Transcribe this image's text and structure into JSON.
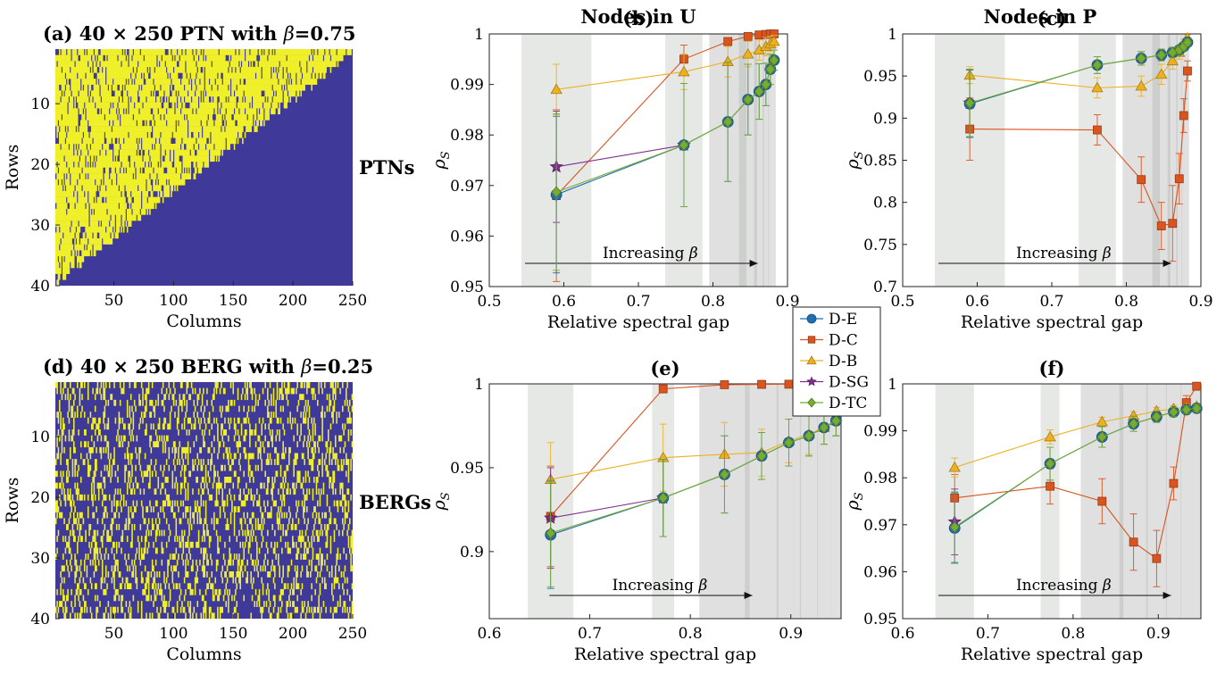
{
  "headers": {
    "col_b": "Nodes in U",
    "col_c": "Nodes in P"
  },
  "row_labels": {
    "top": "PTNs",
    "bottom": "BERGs"
  },
  "colors": {
    "matrix_fill": "#3f3a9a",
    "matrix_entry": "#f0f02a",
    "band": "#e6e8e6",
    "D-E": "#1f6fb2",
    "D-C": "#d9541f",
    "D-B": "#edb120",
    "D-SG": "#7e2f8e",
    "D-TC": "#77ac30"
  },
  "legend": {
    "entries": [
      {
        "label": "D-E",
        "marker": "circle",
        "color": "#1f6fb2"
      },
      {
        "label": "D-C",
        "marker": "square",
        "color": "#d9541f"
      },
      {
        "label": "D-B",
        "marker": "triangle",
        "color": "#edb120"
      },
      {
        "label": "D-SG",
        "marker": "star",
        "color": "#7e2f8e"
      },
      {
        "label": "D-TC",
        "marker": "diamond",
        "color": "#77ac30"
      }
    ]
  },
  "chart_data": [
    {
      "id": "a",
      "type": "heatmap",
      "title": "(a) 40 × 250 PTN with β=0.75",
      "xlabel": "Columns",
      "ylabel": "Rows",
      "xticks": [
        50,
        100,
        150,
        200,
        250
      ],
      "yticks": [
        10,
        20,
        30,
        40
      ],
      "xlim": [
        1,
        250
      ],
      "ylim": [
        1,
        40
      ],
      "rows": 40,
      "cols": 250,
      "pattern": "nested",
      "beta": 0.75
    },
    {
      "id": "d",
      "type": "heatmap",
      "title": "(d) 40 × 250 BERG with β=0.25",
      "xlabel": "Columns",
      "ylabel": "Rows",
      "xticks": [
        50,
        100,
        150,
        200,
        250
      ],
      "yticks": [
        10,
        20,
        30,
        40
      ],
      "xlim": [
        1,
        250
      ],
      "ylim": [
        1,
        40
      ],
      "rows": 40,
      "cols": 250,
      "pattern": "random",
      "beta": 0.25
    },
    {
      "id": "b",
      "type": "line",
      "title": "(b)",
      "xlabel": "Relative spectral gap",
      "ylabel": "ρS",
      "xlim": [
        0.5,
        0.9
      ],
      "ylim": [
        0.95,
        1.0
      ],
      "xticks": [
        0.5,
        0.6,
        0.7,
        0.8,
        0.9
      ],
      "yticks": [
        0.95,
        0.96,
        0.97,
        0.98,
        0.99,
        1.0
      ],
      "annotation": "Increasing β",
      "bands": [
        0.59,
        0.761,
        0.82,
        0.847,
        0.862,
        0.871,
        0.877,
        0.882
      ],
      "series": [
        {
          "name": "D-E",
          "x": [
            0.59,
            0.761,
            0.82,
            0.847,
            0.862,
            0.871,
            0.877,
            0.882
          ],
          "y": [
            0.9682,
            0.978,
            0.9826,
            0.987,
            0.9886,
            0.99,
            0.993,
            0.9948
          ],
          "err": [
            0.0155,
            0.0122,
            0.0118,
            0.007,
            0.0055,
            0.0042,
            0.003,
            0.002
          ]
        },
        {
          "name": "D-C",
          "x": [
            0.59,
            0.761,
            0.82,
            0.847,
            0.862,
            0.871,
            0.877,
            0.882
          ],
          "y": [
            0.968,
            0.995,
            0.9985,
            0.9995,
            0.9998,
            0.9999,
            1.0,
            1.0
          ],
          "err": [
            0.017,
            0.0028,
            0.0007,
            0.0003,
            0.0002,
            0.0001,
            0.0001,
            0.0001
          ]
        },
        {
          "name": "D-B",
          "x": [
            0.59,
            0.761,
            0.82,
            0.847,
            0.862,
            0.871,
            0.877,
            0.882
          ],
          "y": [
            0.989,
            0.9925,
            0.9945,
            0.996,
            0.9968,
            0.9975,
            0.998,
            0.9985
          ],
          "err": [
            0.005,
            0.0035,
            0.003,
            0.0025,
            0.002,
            0.0018,
            0.0015,
            0.0012
          ]
        },
        {
          "name": "D-SG",
          "x": [
            0.59,
            0.761
          ],
          "y": [
            0.9737,
            0.978
          ],
          "err": [
            0.011,
            0.0
          ]
        },
        {
          "name": "D-TC",
          "x": [
            0.59,
            0.761,
            0.82,
            0.847,
            0.862,
            0.871,
            0.877,
            0.882
          ],
          "y": [
            0.9687,
            0.978,
            0.9826,
            0.987,
            0.9886,
            0.99,
            0.993,
            0.9948
          ],
          "err": [
            0.0155,
            0.0122,
            0.0118,
            0.007,
            0.0055,
            0.0042,
            0.003,
            0.002
          ]
        }
      ]
    },
    {
      "id": "c",
      "type": "line",
      "title": "(c)",
      "xlabel": "Relative spectral gap",
      "ylabel": "ρS",
      "xlim": [
        0.5,
        0.9
      ],
      "ylim": [
        0.7,
        1.0
      ],
      "xticks": [
        0.5,
        0.6,
        0.7,
        0.8,
        0.9
      ],
      "yticks": [
        0.7,
        0.75,
        0.8,
        0.85,
        0.9,
        0.95,
        1.0
      ],
      "annotation": "Increasing β",
      "bands": [
        0.59,
        0.761,
        0.82,
        0.847,
        0.862,
        0.871,
        0.877,
        0.882
      ],
      "series": [
        {
          "name": "D-E",
          "x": [
            0.59,
            0.761,
            0.82,
            0.847,
            0.862,
            0.871,
            0.877,
            0.882
          ],
          "y": [
            0.917,
            0.963,
            0.971,
            0.975,
            0.978,
            0.981,
            0.985,
            0.99
          ],
          "err": [
            0.04,
            0.01,
            0.008,
            0.007,
            0.006,
            0.005,
            0.005,
            0.004
          ]
        },
        {
          "name": "D-C",
          "x": [
            0.59,
            0.761,
            0.82,
            0.847,
            0.862,
            0.871,
            0.877,
            0.882
          ],
          "y": [
            0.887,
            0.886,
            0.827,
            0.772,
            0.775,
            0.828,
            0.903,
            0.956
          ],
          "err": [
            0.037,
            0.018,
            0.027,
            0.028,
            0.045,
            0.03,
            0.02,
            0.012
          ]
        },
        {
          "name": "D-B",
          "x": [
            0.59,
            0.761,
            0.82,
            0.847,
            0.862,
            0.871,
            0.877,
            0.882
          ],
          "y": [
            0.951,
            0.936,
            0.938,
            0.952,
            0.968,
            0.978,
            0.988,
            0.995
          ],
          "err": [
            0.01,
            0.012,
            0.012,
            0.012,
            0.01,
            0.008,
            0.006,
            0.004
          ]
        },
        {
          "name": "D-SG",
          "x": [
            0.59
          ],
          "y": [
            0.918
          ],
          "err": [
            0.04
          ]
        },
        {
          "name": "D-TC",
          "x": [
            0.59,
            0.761,
            0.82,
            0.847,
            0.862,
            0.871,
            0.877,
            0.882
          ],
          "y": [
            0.918,
            0.963,
            0.971,
            0.975,
            0.978,
            0.981,
            0.985,
            0.99
          ],
          "err": [
            0.04,
            0.01,
            0.008,
            0.007,
            0.006,
            0.005,
            0.005,
            0.004
          ]
        }
      ]
    },
    {
      "id": "e",
      "type": "line",
      "title": "(e)",
      "xlabel": "Relative spectral gap",
      "ylabel": "ρS",
      "xlim": [
        0.6,
        0.95
      ],
      "ylim": [
        0.86,
        1.0
      ],
      "xticks": [
        0.6,
        0.7,
        0.8,
        0.9
      ],
      "yticks": [
        0.9,
        0.95,
        1.0
      ],
      "annotation": "Increasing β",
      "bands": [
        0.661,
        0.773,
        0.834,
        0.871,
        0.898,
        0.918,
        0.933,
        0.945
      ],
      "series": [
        {
          "name": "D-E",
          "x": [
            0.661,
            0.773,
            0.834,
            0.871,
            0.898,
            0.918,
            0.933,
            0.945
          ],
          "y": [
            0.91,
            0.932,
            0.946,
            0.957,
            0.965,
            0.969,
            0.974,
            0.978
          ],
          "err": [
            0.032,
            0.023,
            0.023,
            0.014,
            0.014,
            0.012,
            0.01,
            0.009
          ]
        },
        {
          "name": "D-C",
          "x": [
            0.661,
            0.773,
            0.834,
            0.871,
            0.898,
            0.918,
            0.933,
            0.945
          ],
          "y": [
            0.921,
            0.997,
            0.9995,
            0.9997,
            0.9998,
            0.9999,
            0.9999,
            1.0
          ],
          "err": [
            0.03,
            0.002,
            0.0005,
            0.0003,
            0.0002,
            0.0001,
            0.0001,
            0.0001
          ]
        },
        {
          "name": "D-B",
          "x": [
            0.661,
            0.773,
            0.834,
            0.871,
            0.898,
            0.918,
            0.933,
            0.945
          ],
          "y": [
            0.943,
            0.956,
            0.958,
            0.959,
            0.966,
            0.97,
            0.974,
            0.978
          ],
          "err": [
            0.022,
            0.02,
            0.019,
            0.014,
            0.013,
            0.012,
            0.01,
            0.009
          ]
        },
        {
          "name": "D-SG",
          "x": [
            0.661,
            0.773
          ],
          "y": [
            0.92,
            0.932
          ],
          "err": [
            0.03,
            0.023
          ]
        },
        {
          "name": "D-TC",
          "x": [
            0.661,
            0.773,
            0.834,
            0.871,
            0.898,
            0.918,
            0.933,
            0.945
          ],
          "y": [
            0.911,
            0.932,
            0.946,
            0.957,
            0.965,
            0.969,
            0.974,
            0.978
          ],
          "err": [
            0.032,
            0.023,
            0.023,
            0.014,
            0.014,
            0.012,
            0.01,
            0.009
          ]
        }
      ]
    },
    {
      "id": "f",
      "type": "line",
      "title": "(f)",
      "xlabel": "Relative spectral gap",
      "ylabel": "ρS",
      "xlim": [
        0.6,
        0.95
      ],
      "ylim": [
        0.95,
        1.0
      ],
      "xticks": [
        0.6,
        0.7,
        0.8,
        0.9
      ],
      "yticks": [
        0.95,
        0.96,
        0.97,
        0.98,
        0.99,
        1.0
      ],
      "annotation": "Increasing β",
      "bands": [
        0.661,
        0.773,
        0.834,
        0.871,
        0.898,
        0.918,
        0.933,
        0.945
      ],
      "series": [
        {
          "name": "D-E",
          "x": [
            0.661,
            0.773,
            0.834,
            0.871,
            0.898,
            0.918,
            0.933,
            0.945
          ],
          "y": [
            0.9693,
            0.983,
            0.9887,
            0.9915,
            0.993,
            0.994,
            0.9945,
            0.9948
          ],
          "err": [
            0.0075,
            0.0035,
            0.0022,
            0.0016,
            0.0012,
            0.001,
            0.0008,
            0.0008
          ]
        },
        {
          "name": "D-C",
          "x": [
            0.661,
            0.773,
            0.834,
            0.871,
            0.898,
            0.918,
            0.933,
            0.945
          ],
          "y": [
            0.9757,
            0.9782,
            0.975,
            0.9663,
            0.9628,
            0.9788,
            0.996,
            0.9995
          ],
          "err": [
            0.005,
            0.0038,
            0.0048,
            0.006,
            0.006,
            0.0035,
            0.0015,
            0.0004
          ]
        },
        {
          "name": "D-B",
          "x": [
            0.661,
            0.773,
            0.834,
            0.871,
            0.898,
            0.918,
            0.933,
            0.945
          ],
          "y": [
            0.9822,
            0.9887,
            0.9919,
            0.9932,
            0.9942,
            0.9947,
            0.995,
            0.9952
          ],
          "err": [
            0.002,
            0.0015,
            0.001,
            0.0009,
            0.0008,
            0.0007,
            0.0006,
            0.0006
          ]
        },
        {
          "name": "D-SG",
          "x": [
            0.661
          ],
          "y": [
            0.9706
          ],
          "err": [
            0.007
          ]
        },
        {
          "name": "D-TC",
          "x": [
            0.661,
            0.773,
            0.834,
            0.871,
            0.898,
            0.918,
            0.933,
            0.945
          ],
          "y": [
            0.9695,
            0.983,
            0.9887,
            0.9915,
            0.993,
            0.994,
            0.9945,
            0.9948
          ],
          "err": [
            0.0075,
            0.0035,
            0.0022,
            0.0016,
            0.0012,
            0.001,
            0.0008,
            0.0008
          ]
        }
      ]
    }
  ]
}
